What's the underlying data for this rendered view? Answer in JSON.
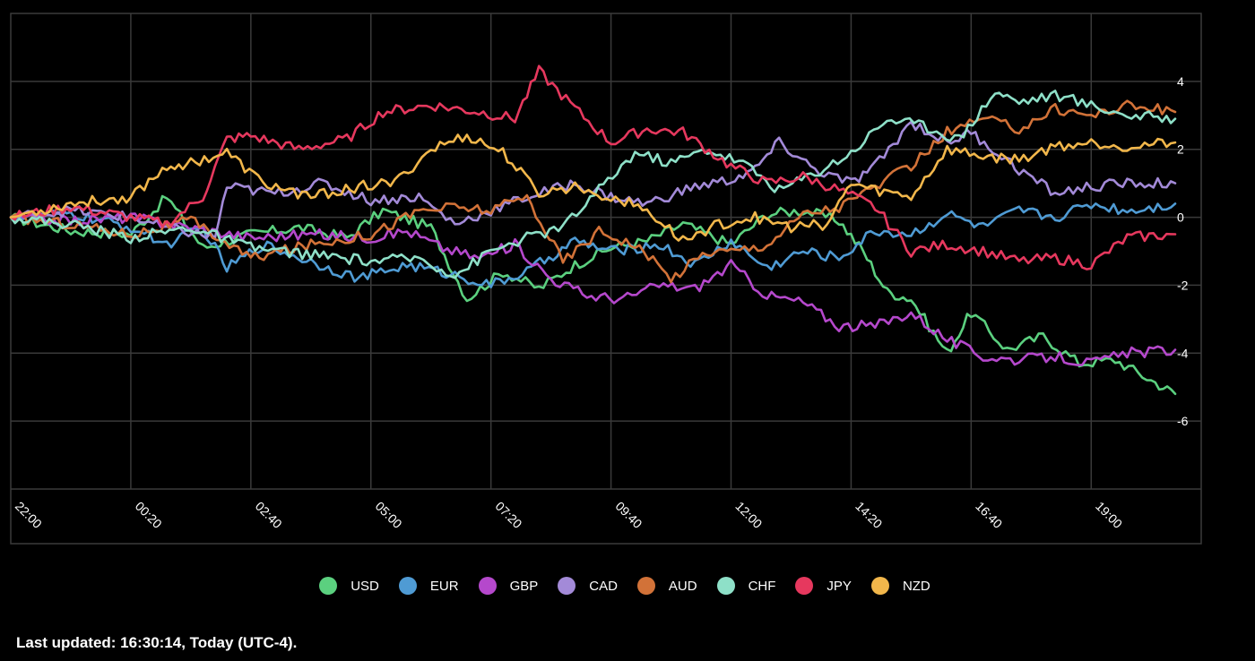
{
  "chart_data": {
    "type": "line",
    "x_tick_labels": [
      "22:00",
      "00:20",
      "02:40",
      "05:00",
      "07:20",
      "09:40",
      "12:00",
      "14:20",
      "16:40",
      "19:00"
    ],
    "y_ticks": [
      4,
      2,
      0,
      -2,
      -4,
      -6
    ],
    "y_tick_labels": [
      "4",
      "2",
      "0",
      "-2",
      "-4",
      "-6"
    ],
    "ylim": [
      -8,
      6
    ],
    "x_range": [
      0,
      9.7
    ],
    "grid": true,
    "legend_position": "bottom",
    "series": [
      {
        "name": "USD",
        "color": "#5bd07f",
        "x": [
          0,
          0.5,
          1,
          1.3,
          1.6,
          2,
          2.4,
          2.8,
          3.1,
          3.5,
          3.8,
          4.1,
          4.4,
          4.7,
          5,
          5.3,
          5.6,
          6,
          6.3,
          6.6,
          6.9,
          7.1,
          7.3,
          7.5,
          7.8,
          8,
          8.3,
          8.6,
          8.9,
          9.2,
          9.5,
          9.7
        ],
        "y": [
          0,
          -0.4,
          -0.5,
          0.6,
          -0.9,
          -0.5,
          -0.3,
          -0.6,
          0.2,
          -0.3,
          -2.4,
          -1.6,
          -2.1,
          -1.4,
          -0.9,
          -0.7,
          -0.2,
          -0.8,
          0.1,
          0.2,
          -0.1,
          -1.0,
          -2.2,
          -2.4,
          -4.0,
          -2.8,
          -3.9,
          -3.5,
          -4.3,
          -4.2,
          -4.8,
          -5.2
        ]
      },
      {
        "name": "EUR",
        "color": "#4f9bd4",
        "x": [
          0,
          0.5,
          1,
          1.3,
          1.6,
          1.8,
          2.1,
          2.5,
          2.9,
          3.3,
          3.7,
          4,
          4.3,
          4.7,
          5,
          5.4,
          5.7,
          6,
          6.3,
          6.6,
          6.9,
          7.2,
          7.5,
          7.8,
          8.1,
          8.4,
          8.7,
          9,
          9.3,
          9.7
        ],
        "y": [
          0,
          0.1,
          -0.3,
          -0.8,
          -0.3,
          -1.5,
          -0.8,
          -1.3,
          -1.8,
          -1.4,
          -1.7,
          -2.0,
          -1.6,
          -0.7,
          -1.0,
          -0.8,
          -1.4,
          -0.7,
          -1.5,
          -1.0,
          -1.2,
          -0.4,
          -0.5,
          0.1,
          -0.3,
          0.2,
          0.0,
          0.4,
          0.2,
          0.4
        ]
      },
      {
        "name": "GBP",
        "color": "#b548cc",
        "x": [
          0,
          0.5,
          1,
          1.5,
          2,
          2.5,
          3,
          3.3,
          3.6,
          3.9,
          4.2,
          4.5,
          4.8,
          5.1,
          5.4,
          5.7,
          6,
          6.3,
          6.6,
          6.9,
          7.2,
          7.5,
          7.8,
          8.1,
          8.4,
          8.7,
          9,
          9.3,
          9.7
        ],
        "y": [
          0,
          -0.1,
          0.0,
          -0.3,
          -0.6,
          -0.5,
          -0.6,
          -0.4,
          -0.9,
          -1.2,
          -0.8,
          -1.8,
          -2.3,
          -2.4,
          -2.0,
          -2.1,
          -1.4,
          -2.3,
          -2.5,
          -3.2,
          -3.2,
          -2.8,
          -3.6,
          -4.1,
          -4.2,
          -4.1,
          -4.3,
          -4.0,
          -3.9
        ]
      },
      {
        "name": "CAD",
        "color": "#a38ad8",
        "x": [
          0,
          0.5,
          1,
          1.3,
          1.7,
          1.8,
          2.2,
          2.6,
          3,
          3.4,
          3.7,
          4,
          4.3,
          4.7,
          5,
          5.3,
          5.7,
          6,
          6.2,
          6.4,
          6.7,
          7,
          7.2,
          7.5,
          7.8,
          8,
          8.4,
          8.7,
          9,
          9.3,
          9.7
        ],
        "y": [
          0,
          0.2,
          0.0,
          -0.3,
          -0.6,
          0.9,
          0.7,
          1.0,
          0.5,
          0.6,
          -0.2,
          0.2,
          0.6,
          1.0,
          0.6,
          0.4,
          0.9,
          1.1,
          1.4,
          2.2,
          1.4,
          1.0,
          1.5,
          2.8,
          2.2,
          2.5,
          1.4,
          0.7,
          0.9,
          1.0,
          1.0
        ]
      },
      {
        "name": "AUD",
        "color": "#d27238",
        "x": [
          0,
          0.5,
          1,
          1.5,
          2,
          2.5,
          3,
          3.4,
          3.7,
          4,
          4.3,
          4.6,
          4.9,
          5.2,
          5.5,
          5.8,
          6,
          6.3,
          6.6,
          6.9,
          7.2,
          7.5,
          7.8,
          8.1,
          8.4,
          8.7,
          9,
          9.3,
          9.7
        ],
        "y": [
          0,
          -0.2,
          -0.5,
          -0.1,
          -1.2,
          -0.8,
          -0.5,
          0.2,
          0.3,
          0.2,
          0.6,
          -1.3,
          -0.4,
          -0.8,
          -1.8,
          -1.0,
          -1.0,
          -0.8,
          0.1,
          0.3,
          0.9,
          1.5,
          2.5,
          2.9,
          2.6,
          3.2,
          3.0,
          3.3,
          3.1
        ]
      },
      {
        "name": "CHF",
        "color": "#8ee0c8",
        "x": [
          0,
          0.5,
          1,
          1.5,
          2,
          2.5,
          3,
          3.4,
          3.7,
          4,
          4.3,
          4.6,
          4.9,
          5.2,
          5.5,
          5.8,
          6.1,
          6.4,
          6.7,
          7,
          7.3,
          7.6,
          7.9,
          8.2,
          8.4,
          8.7,
          9,
          9.3,
          9.7
        ],
        "y": [
          0,
          -0.2,
          -0.6,
          -0.3,
          -0.9,
          -1.1,
          -1.3,
          -1.2,
          -1.7,
          -1.0,
          -0.6,
          -0.3,
          0.8,
          1.9,
          1.6,
          2.0,
          1.6,
          0.8,
          1.3,
          1.9,
          2.9,
          2.7,
          2.3,
          3.7,
          3.4,
          3.6,
          3.3,
          3.0,
          2.9
        ]
      },
      {
        "name": "JPY",
        "color": "#e6385e",
        "x": [
          0,
          0.5,
          1,
          1.3,
          1.6,
          1.8,
          2,
          2.4,
          2.8,
          3.1,
          3.5,
          3.9,
          4.2,
          4.4,
          4.7,
          5,
          5.3,
          5.6,
          6,
          6.3,
          6.6,
          6.9,
          7.2,
          7.5,
          7.8,
          8.1,
          8.4,
          8.7,
          9,
          9.3,
          9.7
        ],
        "y": [
          0,
          0.3,
          0.0,
          -0.2,
          0.6,
          2.3,
          2.4,
          2.0,
          2.3,
          3.1,
          3.3,
          3.1,
          2.9,
          4.3,
          3.2,
          2.2,
          2.6,
          2.5,
          1.5,
          1.0,
          1.2,
          0.8,
          0.3,
          -1.0,
          -0.8,
          -1.0,
          -1.3,
          -1.2,
          -1.4,
          -0.6,
          -0.5
        ]
      },
      {
        "name": "NZD",
        "color": "#f2b74b",
        "x": [
          0,
          0.5,
          1,
          1.3,
          1.5,
          1.8,
          2.1,
          2.5,
          2.9,
          3.2,
          3.5,
          3.8,
          4.1,
          4.4,
          4.7,
          5,
          5.3,
          5.6,
          5.9,
          6.2,
          6.5,
          6.8,
          7,
          7.2,
          7.5,
          7.8,
          8.1,
          8.4,
          8.7,
          9,
          9.3,
          9.7
        ],
        "y": [
          0,
          0.4,
          0.6,
          1.5,
          1.6,
          1.9,
          1.0,
          0.6,
          0.9,
          1.0,
          2.0,
          2.4,
          1.9,
          0.7,
          0.9,
          0.6,
          0.2,
          -0.7,
          -0.2,
          0.0,
          -0.3,
          -0.2,
          1.0,
          0.8,
          0.6,
          2.0,
          1.8,
          1.7,
          2.1,
          2.2,
          2.1,
          2.2
        ]
      }
    ]
  },
  "footer": {
    "last_updated": "Last updated: 16:30:14, Today (UTC-4)."
  }
}
